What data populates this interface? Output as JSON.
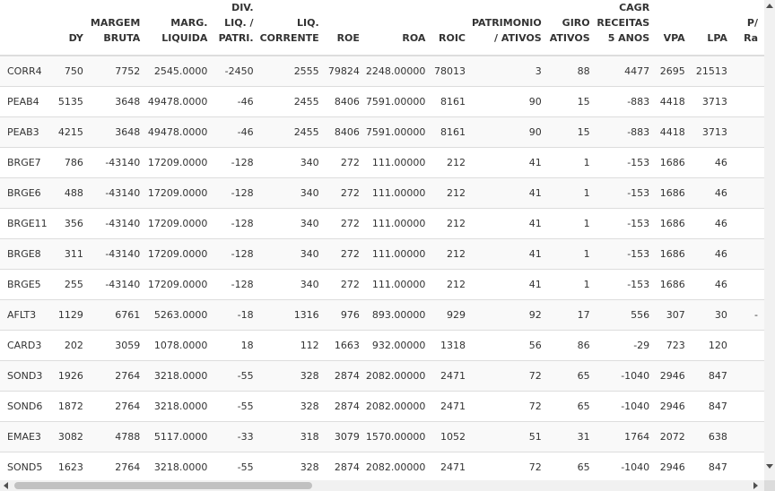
{
  "table": {
    "headers": [
      "",
      "DY",
      "MARGEM\nBRUTA",
      "MARG.\nLIQUIDA",
      "DIV.\nLIQ. /\nPATRI.",
      "LIQ.\nCORRENTE",
      "ROE",
      "ROA",
      "ROIC",
      "PATRIMONIO\n/ ATIVOS",
      "GIRO\nATIVOS",
      "CAGR\nRECEITAS\n5 ANOS",
      "VPA",
      "LPA",
      "P/\nRa"
    ],
    "rows": [
      [
        "CORR4",
        "750",
        "7752",
        "2545.0000",
        "-2450",
        "2555",
        "79824",
        "2248.00000",
        "78013",
        "3",
        "88",
        "4477",
        "2695",
        "21513",
        ""
      ],
      [
        "PEAB4",
        "5135",
        "3648",
        "49478.0000",
        "-46",
        "2455",
        "8406",
        "7591.00000",
        "8161",
        "90",
        "15",
        "-883",
        "4418",
        "3713",
        ""
      ],
      [
        "PEAB3",
        "4215",
        "3648",
        "49478.0000",
        "-46",
        "2455",
        "8406",
        "7591.00000",
        "8161",
        "90",
        "15",
        "-883",
        "4418",
        "3713",
        ""
      ],
      [
        "BRGE7",
        "786",
        "-43140",
        "17209.0000",
        "-128",
        "340",
        "272",
        "111.00000",
        "212",
        "41",
        "1",
        "-153",
        "1686",
        "46",
        ""
      ],
      [
        "BRGE6",
        "488",
        "-43140",
        "17209.0000",
        "-128",
        "340",
        "272",
        "111.00000",
        "212",
        "41",
        "1",
        "-153",
        "1686",
        "46",
        ""
      ],
      [
        "BRGE11",
        "356",
        "-43140",
        "17209.0000",
        "-128",
        "340",
        "272",
        "111.00000",
        "212",
        "41",
        "1",
        "-153",
        "1686",
        "46",
        ""
      ],
      [
        "BRGE8",
        "311",
        "-43140",
        "17209.0000",
        "-128",
        "340",
        "272",
        "111.00000",
        "212",
        "41",
        "1",
        "-153",
        "1686",
        "46",
        ""
      ],
      [
        "BRGE5",
        "255",
        "-43140",
        "17209.0000",
        "-128",
        "340",
        "272",
        "111.00000",
        "212",
        "41",
        "1",
        "-153",
        "1686",
        "46",
        ""
      ],
      [
        "AFLT3",
        "1129",
        "6761",
        "5263.0000",
        "-18",
        "1316",
        "976",
        "893.00000",
        "929",
        "92",
        "17",
        "556",
        "307",
        "30",
        "-"
      ],
      [
        "CARD3",
        "202",
        "3059",
        "1078.0000",
        "18",
        "112",
        "1663",
        "932.00000",
        "1318",
        "56",
        "86",
        "-29",
        "723",
        "120",
        ""
      ],
      [
        "SOND3",
        "1926",
        "2764",
        "3218.0000",
        "-55",
        "328",
        "2874",
        "2082.00000",
        "2471",
        "72",
        "65",
        "-1040",
        "2946",
        "847",
        ""
      ],
      [
        "SOND6",
        "1872",
        "2764",
        "3218.0000",
        "-55",
        "328",
        "2874",
        "2082.00000",
        "2471",
        "72",
        "65",
        "-1040",
        "2946",
        "847",
        ""
      ],
      [
        "EMAE3",
        "3082",
        "4788",
        "5117.0000",
        "-33",
        "318",
        "3079",
        "1570.00000",
        "1052",
        "51",
        "31",
        "1764",
        "2072",
        "638",
        ""
      ],
      [
        "SOND5",
        "1623",
        "2764",
        "3218.0000",
        "-55",
        "328",
        "2874",
        "2082.00000",
        "2471",
        "72",
        "65",
        "-1040",
        "2946",
        "847",
        ""
      ]
    ]
  },
  "icons": {
    "scroll_up": "arrow-up-icon",
    "scroll_down": "arrow-down-icon",
    "scroll_left": "arrow-left-icon",
    "scroll_right": "arrow-right-icon"
  },
  "colors": {
    "header_border": "#dddddd",
    "row_stripe": "#f9f9f9",
    "scrollbar_thumb": "#c1c1c1"
  }
}
